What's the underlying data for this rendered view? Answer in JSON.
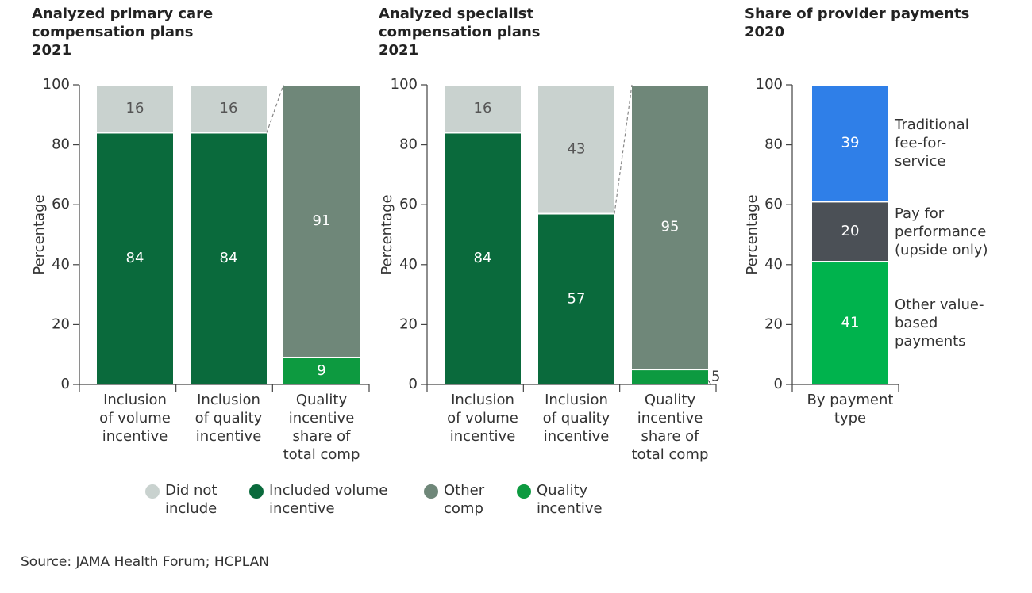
{
  "chart_data": [
    {
      "type": "bar",
      "stacked": true,
      "title": "Analyzed primary care compensation plans",
      "subtitle": "2021",
      "y_label": "Percentage",
      "categories": [
        "Inclusion of volume incentive",
        "Inclusion of quality incentive",
        "Quality incentive share of total comp"
      ],
      "series": [
        {
          "name": "Included volume incentive",
          "color": "#0a6a3c",
          "values": [
            84,
            84,
            null
          ]
        },
        {
          "name": "Did not include",
          "color": "#c9d2cf",
          "values": [
            16,
            16,
            null
          ]
        },
        {
          "name": "Quality incentive",
          "color": "#0d9a40",
          "values": [
            null,
            null,
            9
          ]
        },
        {
          "name": "Other comp",
          "color": "#6f8779",
          "values": [
            null,
            null,
            91
          ]
        }
      ],
      "ylim": [
        0,
        100
      ],
      "yticks": [
        0,
        20,
        40,
        60,
        80,
        100
      ]
    },
    {
      "type": "bar",
      "stacked": true,
      "title": "Analyzed specialist compensation plans",
      "subtitle": "2021",
      "y_label": "Percentage",
      "categories": [
        "Inclusion of volume incentive",
        "Inclusion of quality incentive",
        "Quality incentive share of total comp"
      ],
      "series": [
        {
          "color": "#0a6a3c",
          "values": [
            84,
            57,
            null
          ]
        },
        {
          "color": "#c9d2cf",
          "values": [
            16,
            43,
            null
          ]
        },
        {
          "color": "#0d9a40",
          "values": [
            null,
            null,
            5
          ]
        },
        {
          "color": "#6f8779",
          "values": [
            null,
            null,
            95
          ]
        }
      ],
      "ylim": [
        0,
        100
      ],
      "yticks": [
        0,
        20,
        40,
        60,
        80,
        100
      ]
    },
    {
      "type": "bar",
      "stacked": true,
      "title": "Share of provider payments",
      "subtitle": "2020",
      "y_label": "Percentage",
      "categories": [
        "By payment type"
      ],
      "series": [
        {
          "name": "Other value-based payments",
          "color": "#00b34d",
          "values": [
            41
          ]
        },
        {
          "name": "Pay for performance (upside only)",
          "color": "#4b5056",
          "values": [
            20
          ]
        },
        {
          "name": "Traditional fee-for-service",
          "color": "#2f7fe8",
          "values": [
            39
          ]
        }
      ],
      "ylim": [
        0,
        100
      ],
      "yticks": [
        0,
        20,
        40,
        60,
        80,
        100
      ]
    }
  ],
  "source": "Source: JAMA Health Forum; HCPLAN"
}
